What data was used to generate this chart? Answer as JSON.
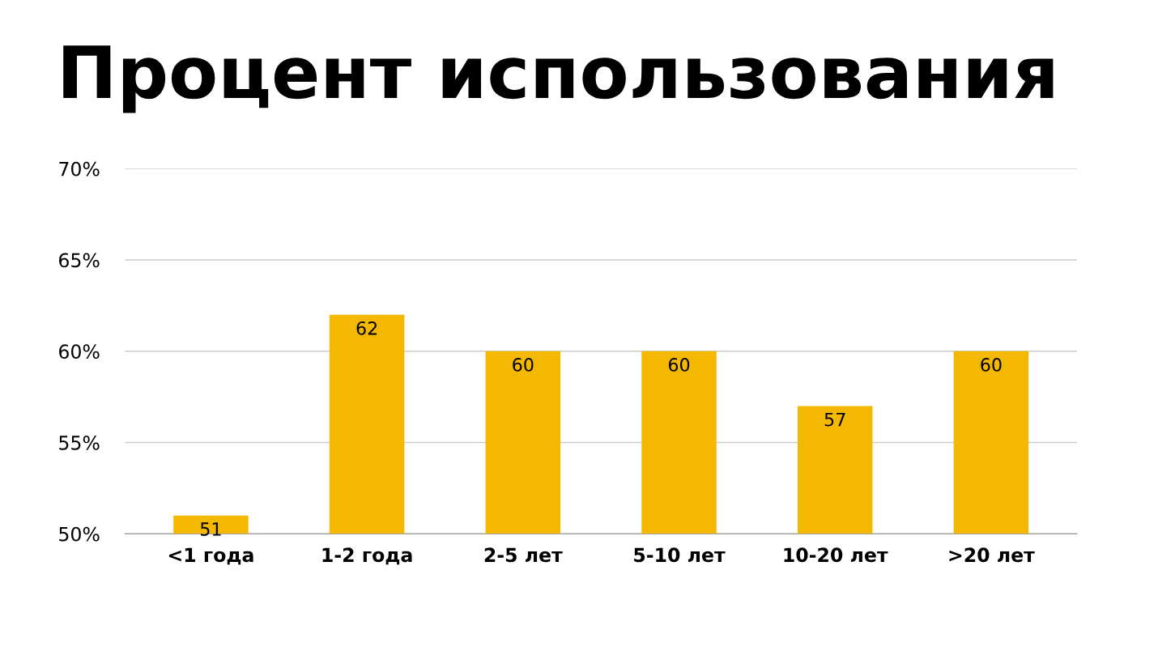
{
  "chart_data": {
    "type": "bar",
    "title": "Процент использования",
    "categories": [
      "<1 года",
      "1-2 года",
      "2-5 лет",
      "5-10 лет",
      "10-20 лет",
      ">20 лет"
    ],
    "values": [
      51,
      62,
      60,
      60,
      57,
      60
    ],
    "color": "#f5b800",
    "ylim": [
      50,
      70
    ],
    "yticks": [
      {
        "value": 50,
        "label": "50%"
      },
      {
        "value": 55,
        "label": "55%"
      },
      {
        "value": 60,
        "label": "60%"
      },
      {
        "value": 65,
        "label": "65%"
      },
      {
        "value": 70,
        "label": "70%"
      }
    ],
    "grid": "y",
    "legend": false,
    "data_labels": true
  }
}
